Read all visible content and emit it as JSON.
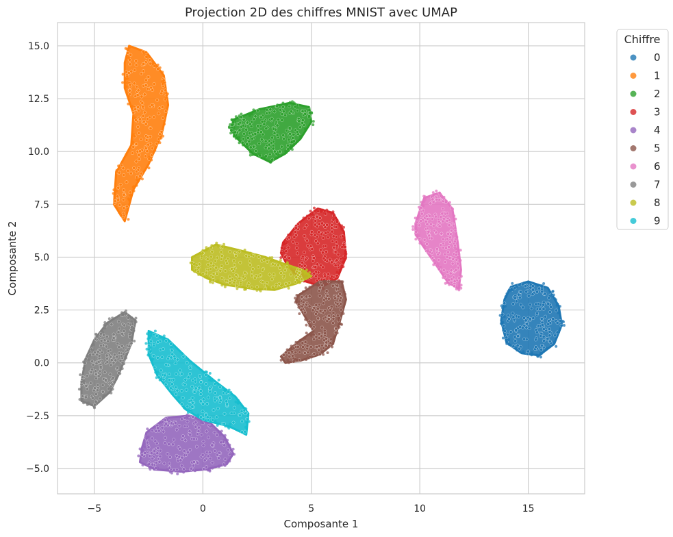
{
  "chart_data": {
    "type": "scatter",
    "title": "Projection 2D des chiffres MNIST avec UMAP",
    "xlabel": "Composante 1",
    "ylabel": "Composante 2",
    "xlim": [
      -6.7,
      17.6
    ],
    "ylim": [
      -6.2,
      16.1
    ],
    "xticks": [
      -5,
      0,
      5,
      10,
      15
    ],
    "xtick_labels": [
      "−5",
      "0",
      "5",
      "10",
      "15"
    ],
    "yticks": [
      -5.0,
      -2.5,
      0.0,
      2.5,
      5.0,
      7.5,
      10.0,
      12.5,
      15.0
    ],
    "ytick_labels": [
      "−5.0",
      "−2.5",
      "0.0",
      "2.5",
      "5.0",
      "7.5",
      "10.0",
      "12.5",
      "15.0"
    ],
    "grid": true,
    "legend": {
      "title": "Chiffre",
      "placement": "outside-top-right"
    },
    "series": [
      {
        "name": "0",
        "color": "#1f77b4",
        "polygon": [
          [
            14.2,
            3.6
          ],
          [
            15.0,
            3.85
          ],
          [
            15.9,
            3.55
          ],
          [
            16.4,
            2.7
          ],
          [
            16.55,
            1.8
          ],
          [
            16.2,
            0.9
          ],
          [
            15.5,
            0.35
          ],
          [
            14.7,
            0.45
          ],
          [
            14.0,
            0.95
          ],
          [
            13.75,
            2.0
          ],
          [
            13.9,
            3.0
          ]
        ]
      },
      {
        "name": "1",
        "color": "#ff7f0e",
        "polygon": [
          [
            -3.4,
            15.0
          ],
          [
            -2.6,
            14.7
          ],
          [
            -1.8,
            13.6
          ],
          [
            -1.6,
            12.2
          ],
          [
            -1.9,
            10.8
          ],
          [
            -2.5,
            9.4
          ],
          [
            -3.2,
            8.2
          ],
          [
            -3.6,
            6.7
          ],
          [
            -4.1,
            7.5
          ],
          [
            -4.0,
            9.0
          ],
          [
            -3.3,
            10.3
          ],
          [
            -3.2,
            11.8
          ],
          [
            -3.6,
            13.0
          ],
          [
            -3.6,
            14.2
          ]
        ]
      },
      {
        "name": "2",
        "color": "#2ca02c",
        "polygon": [
          [
            1.4,
            11.5
          ],
          [
            2.6,
            12.0
          ],
          [
            4.0,
            12.3
          ],
          [
            4.9,
            12.1
          ],
          [
            5.0,
            11.4
          ],
          [
            4.5,
            10.6
          ],
          [
            3.8,
            9.9
          ],
          [
            3.1,
            9.5
          ],
          [
            2.3,
            9.9
          ],
          [
            1.6,
            10.6
          ],
          [
            1.3,
            11.0
          ]
        ]
      },
      {
        "name": "3",
        "color": "#d62728",
        "polygon": [
          [
            3.7,
            5.7
          ],
          [
            4.4,
            6.6
          ],
          [
            5.3,
            7.3
          ],
          [
            6.0,
            7.1
          ],
          [
            6.5,
            6.2
          ],
          [
            6.6,
            5.0
          ],
          [
            6.2,
            4.0
          ],
          [
            5.5,
            3.6
          ],
          [
            4.6,
            3.9
          ],
          [
            3.9,
            4.6
          ],
          [
            3.6,
            5.2
          ]
        ]
      },
      {
        "name": "4",
        "color": "#9467bd",
        "polygon": [
          [
            -2.6,
            -3.3
          ],
          [
            -1.7,
            -2.6
          ],
          [
            -0.6,
            -2.5
          ],
          [
            0.4,
            -2.9
          ],
          [
            1.0,
            -3.5
          ],
          [
            1.4,
            -4.3
          ],
          [
            1.1,
            -4.8
          ],
          [
            0.1,
            -5.05
          ],
          [
            -1.0,
            -5.15
          ],
          [
            -2.2,
            -5.05
          ],
          [
            -2.9,
            -4.7
          ],
          [
            -2.8,
            -4.0
          ]
        ]
      },
      {
        "name": "5",
        "color": "#8c564b",
        "polygon": [
          [
            4.4,
            3.2
          ],
          [
            5.4,
            3.85
          ],
          [
            6.4,
            3.85
          ],
          [
            6.6,
            3.0
          ],
          [
            6.3,
            1.9
          ],
          [
            6.0,
            0.9
          ],
          [
            5.4,
            0.4
          ],
          [
            4.5,
            0.1
          ],
          [
            3.8,
            0.0
          ],
          [
            3.6,
            0.3
          ],
          [
            4.4,
            1.0
          ],
          [
            5.1,
            1.5
          ],
          [
            4.7,
            2.2
          ],
          [
            4.3,
            2.9
          ]
        ]
      },
      {
        "name": "6",
        "color": "#e377c2",
        "polygon": [
          [
            9.8,
            6.6
          ],
          [
            10.2,
            7.8
          ],
          [
            10.9,
            8.05
          ],
          [
            11.5,
            7.3
          ],
          [
            11.75,
            5.7
          ],
          [
            11.9,
            4.4
          ],
          [
            11.8,
            3.5
          ],
          [
            11.3,
            3.8
          ],
          [
            10.7,
            4.7
          ],
          [
            10.1,
            5.6
          ],
          [
            9.8,
            6.1
          ]
        ]
      },
      {
        "name": "7",
        "color": "#7f7f7f",
        "polygon": [
          [
            -5.0,
            1.1
          ],
          [
            -4.4,
            1.9
          ],
          [
            -3.6,
            2.4
          ],
          [
            -3.1,
            2.0
          ],
          [
            -3.3,
            0.9
          ],
          [
            -3.9,
            -0.6
          ],
          [
            -4.3,
            -1.4
          ],
          [
            -5.0,
            -2.05
          ],
          [
            -5.6,
            -1.8
          ],
          [
            -5.6,
            -0.9
          ],
          [
            -5.4,
            0.2
          ]
        ]
      },
      {
        "name": "8",
        "color": "#bcbd22",
        "polygon": [
          [
            -0.5,
            5.0
          ],
          [
            0.6,
            5.6
          ],
          [
            1.8,
            5.3
          ],
          [
            2.9,
            5.0
          ],
          [
            3.7,
            4.7
          ],
          [
            4.6,
            4.4
          ],
          [
            5.0,
            4.1
          ],
          [
            4.3,
            3.75
          ],
          [
            3.3,
            3.45
          ],
          [
            2.3,
            3.5
          ],
          [
            1.0,
            3.7
          ],
          [
            0.2,
            4.0
          ],
          [
            -0.5,
            4.4
          ]
        ]
      },
      {
        "name": "9",
        "color": "#17becf",
        "polygon": [
          [
            -2.5,
            1.5
          ],
          [
            -1.6,
            1.1
          ],
          [
            -0.6,
            0.1
          ],
          [
            0.6,
            -0.9
          ],
          [
            1.5,
            -1.6
          ],
          [
            2.1,
            -2.4
          ],
          [
            2.0,
            -3.4
          ],
          [
            1.2,
            -3.0
          ],
          [
            0.0,
            -2.7
          ],
          [
            -0.8,
            -2.2
          ],
          [
            -1.4,
            -1.5
          ],
          [
            -2.1,
            -0.6
          ],
          [
            -2.5,
            0.4
          ]
        ]
      }
    ]
  }
}
